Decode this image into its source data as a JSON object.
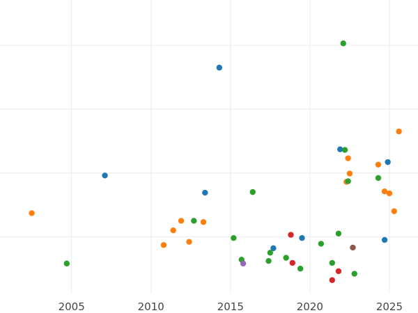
{
  "chart_data": {
    "type": "scatter",
    "title": "",
    "xlabel": "",
    "ylabel": "",
    "xlim": [
      2000.5,
      2026.8
    ],
    "ylim": [
      0,
      4.6
    ],
    "x_ticks": [
      2005,
      2010,
      2015,
      2020,
      2025
    ],
    "x_tick_labels": [
      "2005",
      "2010",
      "2015",
      "2020",
      "2025"
    ],
    "y_gridlines": [
      0.89,
      1.89,
      2.89,
      3.89
    ],
    "grid": true,
    "legend": "none",
    "series": [
      {
        "color": "#1f77b4",
        "points": [
          {
            "x": 2007.1,
            "y": 1.85
          },
          {
            "x": 2013.4,
            "y": 1.58
          },
          {
            "x": 2014.3,
            "y": 3.54
          },
          {
            "x": 2017.7,
            "y": 0.71
          },
          {
            "x": 2019.5,
            "y": 0.87
          },
          {
            "x": 2021.9,
            "y": 2.26
          },
          {
            "x": 2024.7,
            "y": 0.84
          },
          {
            "x": 2024.9,
            "y": 2.06
          }
        ]
      },
      {
        "color": "#ff7f0e",
        "points": [
          {
            "x": 2002.5,
            "y": 1.26
          },
          {
            "x": 2010.8,
            "y": 0.76
          },
          {
            "x": 2011.4,
            "y": 0.99
          },
          {
            "x": 2011.9,
            "y": 1.14
          },
          {
            "x": 2012.4,
            "y": 0.81
          },
          {
            "x": 2013.3,
            "y": 1.12
          },
          {
            "x": 2022.3,
            "y": 1.75
          },
          {
            "x": 2022.4,
            "y": 2.12
          },
          {
            "x": 2022.5,
            "y": 1.88
          },
          {
            "x": 2024.3,
            "y": 2.02
          },
          {
            "x": 2024.7,
            "y": 1.6
          },
          {
            "x": 2025.0,
            "y": 1.57
          },
          {
            "x": 2025.3,
            "y": 1.29
          },
          {
            "x": 2025.6,
            "y": 2.54
          }
        ]
      },
      {
        "color": "#2ca02c",
        "points": [
          {
            "x": 2004.7,
            "y": 0.47
          },
          {
            "x": 2012.7,
            "y": 1.14
          },
          {
            "x": 2015.2,
            "y": 0.87
          },
          {
            "x": 2015.7,
            "y": 0.53
          },
          {
            "x": 2016.4,
            "y": 1.59
          },
          {
            "x": 2017.4,
            "y": 0.51
          },
          {
            "x": 2017.5,
            "y": 0.64
          },
          {
            "x": 2018.5,
            "y": 0.56
          },
          {
            "x": 2019.4,
            "y": 0.39
          },
          {
            "x": 2020.7,
            "y": 0.78
          },
          {
            "x": 2021.4,
            "y": 0.48
          },
          {
            "x": 2021.8,
            "y": 0.94
          },
          {
            "x": 2022.1,
            "y": 3.92
          },
          {
            "x": 2022.2,
            "y": 2.25
          },
          {
            "x": 2022.4,
            "y": 1.76
          },
          {
            "x": 2022.8,
            "y": 0.31
          },
          {
            "x": 2024.3,
            "y": 1.81
          }
        ]
      },
      {
        "color": "#d62728",
        "points": [
          {
            "x": 2018.8,
            "y": 0.92
          },
          {
            "x": 2018.9,
            "y": 0.48
          },
          {
            "x": 2021.4,
            "y": 0.21
          },
          {
            "x": 2021.8,
            "y": 0.35
          }
        ]
      },
      {
        "color": "#9467bd",
        "points": [
          {
            "x": 2015.8,
            "y": 0.47
          }
        ]
      },
      {
        "color": "#8c564b",
        "points": [
          {
            "x": 2022.7,
            "y": 0.72
          }
        ]
      }
    ]
  }
}
